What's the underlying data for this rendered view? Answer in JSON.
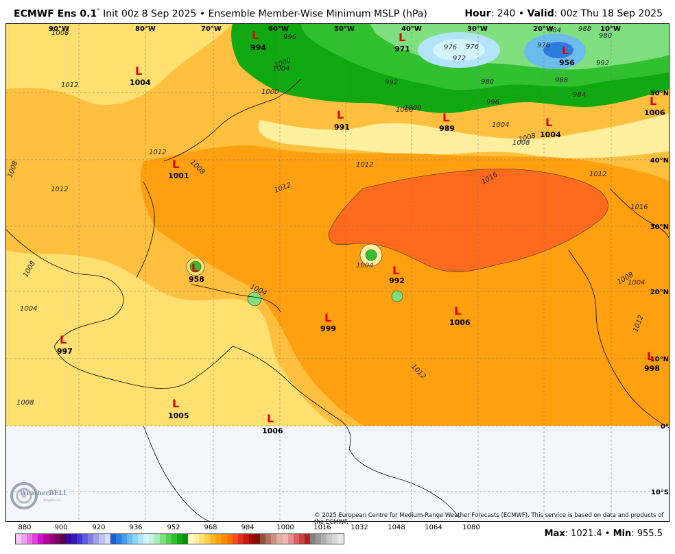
{
  "header": {
    "model": "ECMWF Ens 0.1",
    "degree": "°",
    "init": " Init 00z 8 Sep 2025 • Ensemble Member-Wise Minimum MSLP (hPa)",
    "hour_label": "Hour",
    "hour_value": ": 240 • ",
    "valid_label": "Valid",
    "valid_value": ": 00z Thu 18 Sep 2025"
  },
  "map": {
    "longitude_labels": [
      "90°W",
      "80°W",
      "70°W",
      "60°W",
      "50°W",
      "40°W",
      "30°W",
      "20°W",
      "10°W"
    ],
    "latitude_labels": [
      "50°N",
      "40°N",
      "30°N",
      "20°N",
      "10°N",
      "0°",
      "10°S"
    ],
    "lows": [
      {
        "marker": "L",
        "value": "1004"
      },
      {
        "marker": "L",
        "value": "994"
      },
      {
        "marker": "L",
        "value": "971"
      },
      {
        "marker": "L",
        "value": "956"
      },
      {
        "marker": "L",
        "value": "1006"
      },
      {
        "marker": "L",
        "value": "991"
      },
      {
        "marker": "L",
        "value": "989"
      },
      {
        "marker": "L",
        "value": "1004"
      },
      {
        "marker": "L",
        "value": "1001"
      },
      {
        "marker": "L",
        "value": "958"
      },
      {
        "marker": "L",
        "value": "992"
      },
      {
        "marker": "L",
        "value": "1006"
      },
      {
        "marker": "L",
        "value": "999"
      },
      {
        "marker": "L",
        "value": "997"
      },
      {
        "marker": "L",
        "value": "998"
      },
      {
        "marker": "L",
        "value": "1005"
      },
      {
        "marker": "L",
        "value": "1006"
      }
    ],
    "contour_labels": [
      "1008",
      "1012",
      "1012",
      "1008",
      "1012",
      "1008",
      "1004",
      "1000",
      "1004",
      "1008",
      "1012",
      "1016",
      "1012",
      "1016",
      "1008",
      "1004",
      "1012",
      "996",
      "992",
      "1000",
      "1004",
      "1008",
      "976",
      "972",
      "976",
      "980",
      "976",
      "984",
      "988",
      "980",
      "988",
      "984",
      "992",
      "996",
      "1000",
      "1008",
      "1012",
      "1004",
      "1008",
      "1012",
      "1000",
      "1004"
    ],
    "copyright": "© 2025 European Centre for Medium-Range Weather Forecasts (ECMWF). This service is based on data and products of the ECMWF."
  },
  "logo": {
    "text": "WeatherBELL",
    "subtext": "Analytics LLC"
  },
  "colorbar": {
    "tick_labels": [
      "880",
      "900",
      "920",
      "936",
      "952",
      "968",
      "984",
      "1000",
      "1016",
      "1032",
      "1048",
      "1064",
      "1080"
    ],
    "colors": [
      "#f7c8f4",
      "#f0a0ee",
      "#e870e6",
      "#e040dc",
      "#d010cc",
      "#b8009c",
      "#98007a",
      "#780060",
      "#580048",
      "#3a0a98",
      "#3418b8",
      "#3a38d0",
      "#5c5cdc",
      "#8080e4",
      "#a0a0ec",
      "#c0c0f4",
      "#dcdcf8",
      "#1c5cc8",
      "#2c7ce0",
      "#4c9ce8",
      "#6cbcf0",
      "#8cd4f8",
      "#b4e4fc",
      "#d4f4fc",
      "#c8f0e4",
      "#a8ecb8",
      "#80e080",
      "#58d058",
      "#30c030",
      "#10a810",
      "#089008",
      "#fffcc8",
      "#fff0a0",
      "#ffe070",
      "#ffd050",
      "#ffb828",
      "#ffa010",
      "#ff8c00",
      "#ff7000",
      "#f05020",
      "#e03018",
      "#c81810",
      "#a00808",
      "#801000",
      "#905040",
      "#b07060",
      "#c89080",
      "#e0b0a0",
      "#f0b4b4",
      "#e89090",
      "#d86060",
      "#c84040",
      "#b02020",
      "#808080",
      "#989898",
      "#b0b0b0",
      "#c8c8c8",
      "#d8d8d8",
      "#e8e8e8"
    ]
  },
  "maxmin": {
    "max_label": "Max",
    "max_value": ": 1021.4 • ",
    "min_label": "Min",
    "min_value": ": 955.5"
  }
}
